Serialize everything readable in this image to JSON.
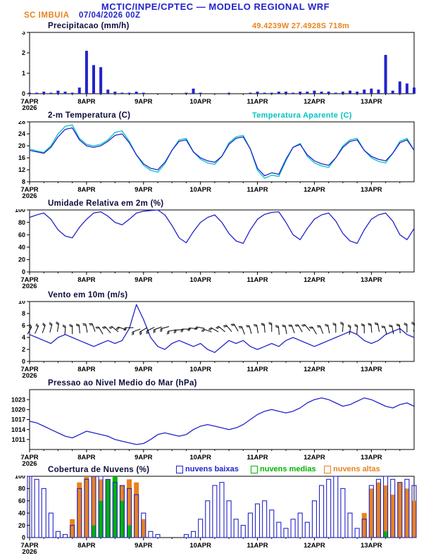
{
  "header": {
    "title": "MCTIC/INPE/CPTEC — MODELO REGIONAL WRF",
    "station": "SC IMBUIA",
    "datetime": "07/04/2026 00Z",
    "location": "49.4239W 27.4928S 718m"
  },
  "x_axis": {
    "tick_labels": [
      "7APR",
      "8APR",
      "9APR",
      "10APR",
      "11APR",
      "12APR",
      "13APR"
    ],
    "year_label": "2026",
    "hours": [
      0,
      24,
      48,
      72,
      96,
      120,
      144
    ],
    "total_hours": 162,
    "x_step_hours": 3
  },
  "colors": {
    "blue": "#2323cb",
    "cyan": "#00c3c3",
    "orange": "#e8831d",
    "green": "#00b400",
    "title": "#0b0b3a",
    "axis": "#000000"
  },
  "chart_data": [
    {
      "type": "bar",
      "title": "Precipitacao (mm/h)",
      "ylim": [
        0,
        3
      ],
      "yticks": [
        0,
        1,
        2,
        3
      ],
      "values": [
        0.05,
        0.05,
        0.1,
        0.05,
        0.15,
        0.1,
        0.05,
        0.3,
        2.1,
        1.4,
        1.3,
        0.2,
        0.1,
        0.05,
        0.05,
        0.1,
        0.05,
        0,
        0,
        0,
        0,
        0,
        0.05,
        0.25,
        0.05,
        0,
        0,
        0,
        0.05,
        0,
        0,
        0.05,
        0.1,
        0.05,
        0.05,
        0.1,
        0.1,
        0.05,
        0.1,
        0.1,
        0.15,
        0.1,
        0.1,
        0.05,
        0.1,
        0.15,
        0.1,
        0.2,
        0.25,
        0.2,
        1.9,
        0.15,
        0.6,
        0.5,
        0.3
      ]
    },
    {
      "type": "line",
      "title": "2-m Temperatura (C)",
      "legend_right": "Temperatura Aparente (C)",
      "ylim": [
        8,
        28
      ],
      "yticks": [
        8,
        12,
        16,
        20,
        24,
        28
      ],
      "series": [
        {
          "name": "Temperatura Aparente",
          "color_key": "cyan",
          "values": [
            19.0,
            18.3,
            17.8,
            20.0,
            24.0,
            26.5,
            27.0,
            22.5,
            20.5,
            20.0,
            20.5,
            22.0,
            24.5,
            25.0,
            21.5,
            17.0,
            13.5,
            11.8,
            11.2,
            14.0,
            18.5,
            22.0,
            22.5,
            18.0,
            15.5,
            14.3,
            13.8,
            16.5,
            21.0,
            23.0,
            23.5,
            19.0,
            11.8,
            9.2,
            10.2,
            9.8,
            15.0,
            19.5,
            20.8,
            16.5,
            14.3,
            13.3,
            12.8,
            16.0,
            20.0,
            22.0,
            22.5,
            18.5,
            16.0,
            14.8,
            14.3,
            17.5,
            21.5,
            22.5,
            18.5
          ]
        },
        {
          "name": "2-m Temperatura",
          "color_key": "blue",
          "values": [
            18.5,
            18.0,
            17.5,
            19.5,
            23.0,
            25.5,
            26.0,
            22.0,
            20.0,
            19.5,
            20.0,
            21.5,
            23.5,
            24.0,
            21.0,
            17.0,
            14.0,
            12.5,
            12.0,
            14.5,
            18.5,
            21.5,
            22.0,
            18.0,
            16.0,
            15.0,
            14.5,
            16.5,
            20.5,
            22.5,
            23.0,
            19.0,
            12.5,
            10.0,
            11.0,
            10.5,
            15.5,
            19.5,
            20.5,
            17.0,
            15.0,
            14.0,
            13.5,
            16.0,
            19.5,
            21.5,
            22.0,
            18.5,
            16.5,
            15.5,
            15.0,
            17.5,
            21.0,
            22.0,
            18.5
          ]
        }
      ]
    },
    {
      "type": "line",
      "title": "Umidade Relativa em 2m (%)",
      "ylim": [
        0,
        100
      ],
      "yticks": [
        0,
        20,
        40,
        60,
        80,
        100
      ],
      "series": [
        {
          "name": "Umidade Relativa",
          "color_key": "blue",
          "values": [
            88,
            92,
            95,
            85,
            68,
            58,
            55,
            72,
            85,
            95,
            97,
            90,
            80,
            76,
            85,
            95,
            98,
            99,
            100,
            92,
            75,
            55,
            47,
            65,
            80,
            88,
            92,
            80,
            62,
            50,
            46,
            68,
            85,
            93,
            96,
            97,
            80,
            60,
            52,
            70,
            85,
            92,
            95,
            82,
            62,
            50,
            46,
            68,
            85,
            92,
            95,
            82,
            60,
            52,
            70
          ]
        }
      ]
    },
    {
      "type": "line",
      "title": "Vento em 10m (m/s)",
      "ylim": [
        0,
        10
      ],
      "yticks": [
        0,
        2,
        4,
        6,
        8,
        10
      ],
      "series": [
        {
          "name": "Velocidade do Vento",
          "color_key": "blue",
          "values": [
            4.5,
            4.0,
            3.5,
            3.0,
            4.0,
            4.5,
            4.0,
            3.5,
            3.0,
            2.5,
            3.0,
            3.5,
            3.0,
            3.5,
            5.5,
            9.5,
            7.0,
            4.0,
            2.5,
            2.0,
            3.0,
            3.5,
            3.0,
            2.5,
            3.0,
            2.0,
            1.5,
            2.5,
            3.5,
            3.0,
            3.5,
            2.5,
            2.0,
            2.5,
            3.0,
            2.5,
            3.5,
            4.0,
            3.5,
            3.0,
            2.5,
            3.0,
            3.5,
            4.0,
            4.5,
            5.0,
            4.5,
            3.5,
            3.0,
            3.5,
            4.5,
            5.0,
            5.5,
            4.5,
            4.0
          ]
        }
      ],
      "barbs": {
        "level": 5.4,
        "directions_deg": [
          60,
          65,
          70,
          75,
          80,
          85,
          90,
          95,
          100,
          110,
          120,
          130,
          140,
          160,
          180,
          200,
          210,
          205,
          200,
          195,
          190,
          185,
          180,
          175,
          170,
          160,
          150,
          140,
          130,
          120,
          110,
          105,
          100,
          95,
          90,
          95,
          100,
          110,
          120,
          130,
          120,
          110,
          100,
          90,
          85,
          80,
          85,
          90,
          95,
          100,
          105,
          100,
          95,
          90,
          85
        ]
      }
    },
    {
      "type": "line",
      "title": "Pressao ao Nivel Medio do Mar (hPa)",
      "ylim": [
        1008,
        1026
      ],
      "yticks": [
        1011,
        1014,
        1017,
        1020,
        1023
      ],
      "series": [
        {
          "name": "Pressao",
          "color_key": "blue",
          "values": [
            1016.5,
            1016.0,
            1015.0,
            1014.0,
            1013.0,
            1012.0,
            1011.5,
            1012.5,
            1013.5,
            1013.0,
            1012.5,
            1012.0,
            1011.0,
            1010.5,
            1010.0,
            1009.5,
            1009.8,
            1011.0,
            1012.5,
            1013.0,
            1012.5,
            1012.0,
            1012.5,
            1014.0,
            1015.0,
            1015.5,
            1015.0,
            1014.5,
            1014.0,
            1014.5,
            1015.5,
            1017.0,
            1018.5,
            1019.5,
            1020.0,
            1019.5,
            1019.0,
            1019.5,
            1020.5,
            1022.0,
            1023.0,
            1023.5,
            1023.0,
            1022.0,
            1021.0,
            1021.5,
            1022.5,
            1023.5,
            1023.0,
            1022.0,
            1021.0,
            1020.5,
            1021.5,
            1022.0,
            1021.0
          ]
        }
      ]
    },
    {
      "type": "bar",
      "title": "Cobertura de Nuvens (%)",
      "ylim": [
        0,
        100
      ],
      "yticks": [
        0,
        20,
        40,
        60,
        80,
        100
      ],
      "legend": [
        {
          "label": "nuvens baixas",
          "color_key": "blue"
        },
        {
          "label": "nuvens medias",
          "color_key": "green"
        },
        {
          "label": "nuvens altas",
          "color_key": "orange"
        }
      ],
      "series": [
        {
          "name": "nuvens baixas",
          "color_key": "blue",
          "values": [
            100,
            95,
            80,
            40,
            10,
            5,
            20,
            80,
            95,
            100,
            100,
            95,
            90,
            85,
            80,
            70,
            40,
            10,
            5,
            0,
            0,
            0,
            5,
            10,
            30,
            60,
            85,
            90,
            60,
            30,
            20,
            40,
            55,
            60,
            45,
            25,
            15,
            30,
            40,
            25,
            60,
            85,
            95,
            100,
            80,
            40,
            15,
            30,
            85,
            95,
            100,
            95,
            90,
            95,
            85
          ]
        },
        {
          "name": "nuvens medias",
          "color_key": "green",
          "values": [
            0,
            0,
            0,
            0,
            0,
            0,
            0,
            0,
            0,
            20,
            60,
            95,
            100,
            60,
            20,
            0,
            0,
            0,
            0,
            0,
            0,
            0,
            0,
            0,
            0,
            0,
            0,
            0,
            0,
            0,
            0,
            0,
            0,
            0,
            0,
            0,
            0,
            0,
            0,
            0,
            0,
            0,
            0,
            0,
            0,
            0,
            0,
            0,
            0,
            0,
            10,
            0,
            0,
            0,
            0
          ]
        },
        {
          "name": "nuvens altas",
          "color_key": "orange",
          "values": [
            0,
            0,
            0,
            0,
            0,
            0,
            30,
            90,
            100,
            100,
            95,
            80,
            70,
            85,
            95,
            90,
            30,
            0,
            0,
            0,
            0,
            0,
            0,
            0,
            0,
            0,
            0,
            0,
            0,
            0,
            0,
            0,
            0,
            0,
            0,
            0,
            0,
            0,
            0,
            0,
            0,
            0,
            0,
            0,
            0,
            0,
            0,
            40,
            80,
            90,
            85,
            70,
            90,
            80,
            60
          ]
        }
      ]
    }
  ]
}
